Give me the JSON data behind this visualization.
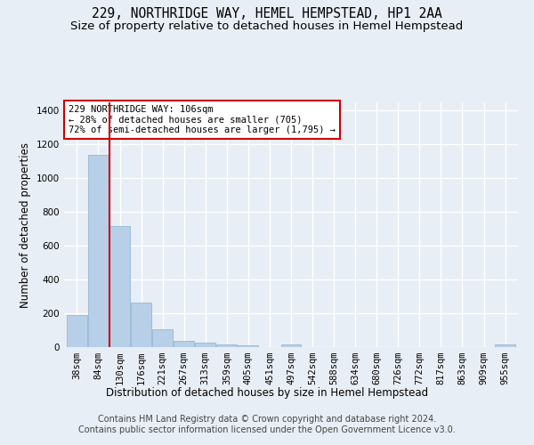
{
  "title": "229, NORTHRIDGE WAY, HEMEL HEMPSTEAD, HP1 2AA",
  "subtitle": "Size of property relative to detached houses in Hemel Hempstead",
  "xlabel": "Distribution of detached houses by size in Hemel Hempstead",
  "ylabel": "Number of detached properties",
  "categories": [
    "38sqm",
    "84sqm",
    "130sqm",
    "176sqm",
    "221sqm",
    "267sqm",
    "313sqm",
    "359sqm",
    "405sqm",
    "451sqm",
    "497sqm",
    "542sqm",
    "588sqm",
    "634sqm",
    "680sqm",
    "726sqm",
    "772sqm",
    "817sqm",
    "863sqm",
    "909sqm",
    "955sqm"
  ],
  "values": [
    190,
    1140,
    715,
    265,
    108,
    35,
    27,
    14,
    12,
    0,
    14,
    0,
    0,
    0,
    0,
    0,
    0,
    0,
    0,
    0,
    14
  ],
  "bar_color": "#b8cfe8",
  "bar_edge_color": "#8ab0d0",
  "vline_x": 1.5,
  "vline_color": "#cc0000",
  "annotation_text": "229 NORTHRIDGE WAY: 106sqm\n← 28% of detached houses are smaller (705)\n72% of semi-detached houses are larger (1,795) →",
  "annotation_box_color": "#ffffff",
  "annotation_box_edge": "#cc0000",
  "footer_line1": "Contains HM Land Registry data © Crown copyright and database right 2024.",
  "footer_line2": "Contains public sector information licensed under the Open Government Licence v3.0.",
  "ylim": [
    0,
    1450
  ],
  "yticks": [
    0,
    200,
    400,
    600,
    800,
    1000,
    1200,
    1400
  ],
  "bg_color": "#e8eef5",
  "grid_color": "#ffffff",
  "title_fontsize": 10.5,
  "subtitle_fontsize": 9.5,
  "axis_label_fontsize": 8.5,
  "tick_fontsize": 7.5,
  "footer_fontsize": 7.0,
  "annot_fontsize": 7.5
}
